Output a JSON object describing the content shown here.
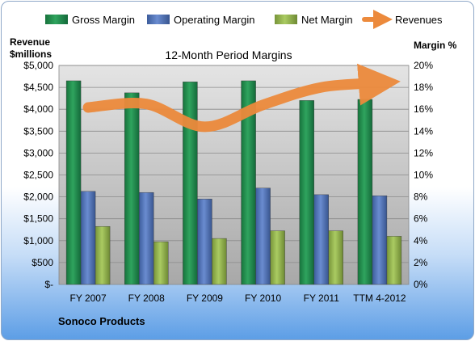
{
  "chart_data": {
    "type": "bar",
    "title": "12-Month Period Margins",
    "categories": [
      "FY 2007",
      "FY 2008",
      "FY 2009",
      "FY 2010",
      "FY 2011",
      "TTM 4-2012"
    ],
    "series": [
      {
        "name": "Gross Margin",
        "axis": "right",
        "values": [
          18.6,
          17.5,
          18.5,
          18.6,
          16.8,
          16.9
        ],
        "color": "#1f8a4c"
      },
      {
        "name": "Operating Margin",
        "axis": "right",
        "values": [
          8.5,
          8.4,
          7.8,
          8.8,
          8.2,
          8.1
        ],
        "color": "#4f72b8"
      },
      {
        "name": "Net Margin",
        "axis": "right",
        "values": [
          5.3,
          3.9,
          4.2,
          4.9,
          4.9,
          4.4
        ],
        "color": "#8fb04a"
      },
      {
        "name": "Revenues",
        "axis": "left",
        "type": "line",
        "values": [
          4040,
          4120,
          3600,
          4100,
          4500,
          4600
        ],
        "color": "#ec8a3c"
      }
    ],
    "y_left": {
      "label_line1": "Revenue",
      "label_line2": "$millions",
      "lim": [
        0,
        5000
      ],
      "ticks": [
        "$-",
        "$500",
        "$1,000",
        "$1,500",
        "$2,000",
        "$2,500",
        "$3,000",
        "$3,500",
        "$4,000",
        "$4,500",
        "$5,000"
      ]
    },
    "y_right": {
      "label": "Margin %",
      "lim": [
        0,
        20
      ],
      "ticks": [
        "0%",
        "2%",
        "4%",
        "6%",
        "8%",
        "10%",
        "12%",
        "14%",
        "16%",
        "18%",
        "20%"
      ]
    },
    "grid": true,
    "legend_position": "top"
  },
  "footer": {
    "company": "Sonoco Products"
  }
}
